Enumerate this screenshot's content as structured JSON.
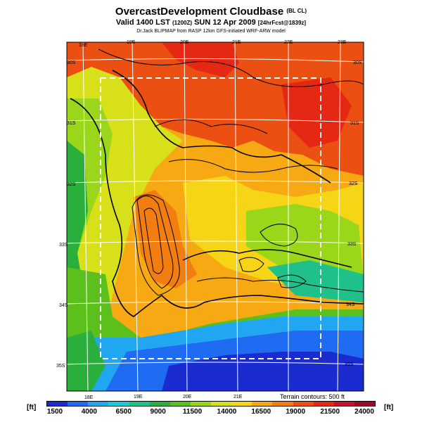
{
  "title": {
    "main": "OvercastDevelopment Cloudbase",
    "main_suffix": "(BL CL)",
    "valid": "Valid 1400 LST",
    "valid_z": "(1200Z)",
    "date": "SUN 12 Apr 2009",
    "forecast": "[24hrFcst@1839z]",
    "credit": "Dr.Jack BLIPMAP from RASP 12km GFS-initiated WRF-ARW model"
  },
  "map": {
    "lon_labels_top": [
      "18E",
      "19E",
      "20E",
      "21E",
      "22E",
      "23E"
    ],
    "lon_labels_bottom": [
      "18E",
      "19E",
      "20E",
      "21E"
    ],
    "lat_labels_left": [
      "30S",
      "31S",
      "32S",
      "33S",
      "34S",
      "35S"
    ],
    "lat_labels_right": [
      "30S",
      "31S",
      "32S",
      "33S",
      "34S",
      "35S"
    ],
    "terrain_note": "Terrain contours: 500 ft"
  },
  "colorbar": {
    "unit_left": "[ft]",
    "unit_right": "[ft]",
    "labels": [
      "1500",
      "4000",
      "6500",
      "9000",
      "11500",
      "14000",
      "16500",
      "19000",
      "21500",
      "24000"
    ],
    "colors": [
      "#1a2bd0",
      "#1f6cf2",
      "#21a6f2",
      "#1ec8d6",
      "#1fc08a",
      "#2aae3c",
      "#5cc01c",
      "#9ad61a",
      "#d8e01a",
      "#f6d516",
      "#f6a912",
      "#f27d10",
      "#ec4f12",
      "#e42814",
      "#c4122e",
      "#a0082a"
    ]
  }
}
